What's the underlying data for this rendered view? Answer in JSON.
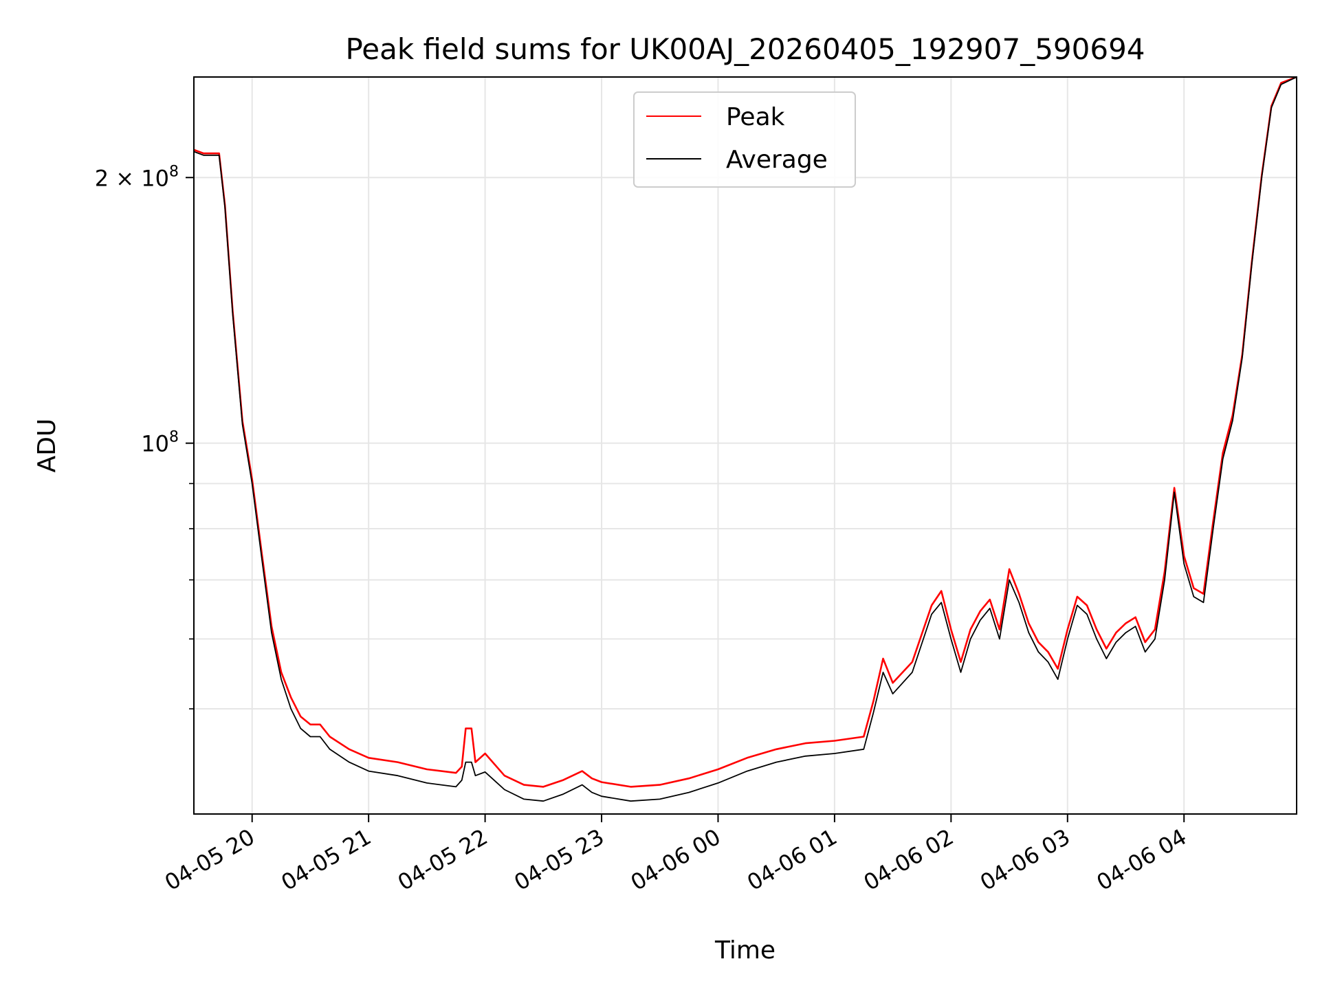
{
  "chart_data": {
    "type": "line",
    "title": "Peak field sums for UK00AJ_20260405_192907_590694",
    "xlabel": "Time",
    "ylabel": "ADU",
    "yscale": "log",
    "ylim": [
      38000000,
      260000000
    ],
    "xlim": [
      "2026-04-05 19:30",
      "2026-04-06 04:58"
    ],
    "grid": true,
    "legend": {
      "placement": "upper center",
      "entries": [
        "Peak",
        "Average"
      ]
    },
    "colors": {
      "Peak": "#ff0000",
      "Average": "#000000",
      "grid": "#e6e6e6"
    },
    "y_ticks": [
      {
        "value": 200000000,
        "base": "2 × 10",
        "exp": "8"
      },
      {
        "value": 100000000,
        "base": "10",
        "exp": "8"
      }
    ],
    "y_minor_ticks": [
      50000000,
      60000000,
      70000000,
      80000000,
      90000000
    ],
    "x_ticks": [
      {
        "time": "2026-04-05 20:00",
        "label": "04-05 20"
      },
      {
        "time": "2026-04-05 21:00",
        "label": "04-05 21"
      },
      {
        "time": "2026-04-05 22:00",
        "label": "04-05 22"
      },
      {
        "time": "2026-04-05 23:00",
        "label": "04-05 23"
      },
      {
        "time": "2026-04-06 00:00",
        "label": "04-06 00"
      },
      {
        "time": "2026-04-06 01:00",
        "label": "04-06 01"
      },
      {
        "time": "2026-04-06 02:00",
        "label": "04-06 02"
      },
      {
        "time": "2026-04-06 03:00",
        "label": "04-06 03"
      },
      {
        "time": "2026-04-06 04:00",
        "label": "04-06 04"
      }
    ],
    "series": [
      {
        "name": "Average",
        "points": [
          [
            "2026-04-05 19:30",
            214000000
          ],
          [
            "2026-04-05 19:35",
            212000000
          ],
          [
            "2026-04-05 19:43",
            212000000
          ],
          [
            "2026-04-05 19:46",
            185000000
          ],
          [
            "2026-04-05 19:50",
            140000000
          ],
          [
            "2026-04-05 19:55",
            105000000
          ],
          [
            "2026-04-05 20:00",
            90000000
          ],
          [
            "2026-04-05 20:05",
            74000000
          ],
          [
            "2026-04-05 20:10",
            61000000
          ],
          [
            "2026-04-05 20:15",
            54000000
          ],
          [
            "2026-04-05 20:20",
            50000000
          ],
          [
            "2026-04-05 20:25",
            47500000
          ],
          [
            "2026-04-05 20:30",
            46500000
          ],
          [
            "2026-04-05 20:35",
            46500000
          ],
          [
            "2026-04-05 20:40",
            45000000
          ],
          [
            "2026-04-05 20:50",
            43500000
          ],
          [
            "2026-04-05 21:00",
            42500000
          ],
          [
            "2026-04-05 21:15",
            42000000
          ],
          [
            "2026-04-05 21:30",
            41200000
          ],
          [
            "2026-04-05 21:45",
            40800000
          ],
          [
            "2026-04-05 21:48",
            41500000
          ],
          [
            "2026-04-05 21:50",
            43500000
          ],
          [
            "2026-04-05 21:53",
            43500000
          ],
          [
            "2026-04-05 21:55",
            42000000
          ],
          [
            "2026-04-05 22:00",
            42400000
          ],
          [
            "2026-04-05 22:10",
            40500000
          ],
          [
            "2026-04-05 22:20",
            39500000
          ],
          [
            "2026-04-05 22:30",
            39300000
          ],
          [
            "2026-04-05 22:40",
            40000000
          ],
          [
            "2026-04-05 22:50",
            41000000
          ],
          [
            "2026-04-05 22:55",
            40200000
          ],
          [
            "2026-04-05 23:00",
            39800000
          ],
          [
            "2026-04-05 23:15",
            39300000
          ],
          [
            "2026-04-05 23:30",
            39500000
          ],
          [
            "2026-04-05 23:45",
            40200000
          ],
          [
            "2026-04-06 00:00",
            41200000
          ],
          [
            "2026-04-06 00:15",
            42500000
          ],
          [
            "2026-04-06 00:30",
            43500000
          ],
          [
            "2026-04-06 00:45",
            44200000
          ],
          [
            "2026-04-06 01:00",
            44500000
          ],
          [
            "2026-04-06 01:15",
            45000000
          ],
          [
            "2026-04-06 01:20",
            49500000
          ],
          [
            "2026-04-06 01:25",
            55000000
          ],
          [
            "2026-04-06 01:30",
            52000000
          ],
          [
            "2026-04-06 01:40",
            55000000
          ],
          [
            "2026-04-06 01:50",
            64000000
          ],
          [
            "2026-04-06 01:55",
            66000000
          ],
          [
            "2026-04-06 02:00",
            60000000
          ],
          [
            "2026-04-06 02:05",
            55000000
          ],
          [
            "2026-04-06 02:10",
            60000000
          ],
          [
            "2026-04-06 02:15",
            63000000
          ],
          [
            "2026-04-06 02:20",
            65000000
          ],
          [
            "2026-04-06 02:25",
            60000000
          ],
          [
            "2026-04-06 02:30",
            70000000
          ],
          [
            "2026-04-06 02:35",
            66000000
          ],
          [
            "2026-04-06 02:40",
            61000000
          ],
          [
            "2026-04-06 02:45",
            58000000
          ],
          [
            "2026-04-06 02:50",
            56500000
          ],
          [
            "2026-04-06 02:55",
            54000000
          ],
          [
            "2026-04-06 03:00",
            60000000
          ],
          [
            "2026-04-06 03:05",
            65500000
          ],
          [
            "2026-04-06 03:10",
            64000000
          ],
          [
            "2026-04-06 03:15",
            60000000
          ],
          [
            "2026-04-06 03:20",
            57000000
          ],
          [
            "2026-04-06 03:25",
            59500000
          ],
          [
            "2026-04-06 03:30",
            61000000
          ],
          [
            "2026-04-06 03:35",
            62000000
          ],
          [
            "2026-04-06 03:40",
            58000000
          ],
          [
            "2026-04-06 03:45",
            60000000
          ],
          [
            "2026-04-06 03:50",
            70000000
          ],
          [
            "2026-04-06 03:55",
            88000000
          ],
          [
            "2026-04-06 04:00",
            73000000
          ],
          [
            "2026-04-06 04:05",
            67000000
          ],
          [
            "2026-04-06 04:10",
            66000000
          ],
          [
            "2026-04-06 04:15",
            80000000
          ],
          [
            "2026-04-06 04:20",
            96000000
          ],
          [
            "2026-04-06 04:25",
            106000000
          ],
          [
            "2026-04-06 04:30",
            125000000
          ],
          [
            "2026-04-06 04:35",
            160000000
          ],
          [
            "2026-04-06 04:40",
            200000000
          ],
          [
            "2026-04-06 04:45",
            240000000
          ],
          [
            "2026-04-06 04:50",
            255000000
          ],
          [
            "2026-04-06 04:58",
            260000000
          ]
        ]
      },
      {
        "name": "Peak",
        "points": [
          [
            "2026-04-05 19:30",
            215000000
          ],
          [
            "2026-04-05 19:35",
            213000000
          ],
          [
            "2026-04-05 19:43",
            213000000
          ],
          [
            "2026-04-05 19:46",
            186000000
          ],
          [
            "2026-04-05 19:50",
            141000000
          ],
          [
            "2026-04-05 19:55",
            106000000
          ],
          [
            "2026-04-05 20:00",
            91000000
          ],
          [
            "2026-04-05 20:05",
            75000000
          ],
          [
            "2026-04-05 20:10",
            62000000
          ],
          [
            "2026-04-05 20:15",
            55000000
          ],
          [
            "2026-04-05 20:20",
            51500000
          ],
          [
            "2026-04-05 20:25",
            49000000
          ],
          [
            "2026-04-05 20:30",
            48000000
          ],
          [
            "2026-04-05 20:35",
            48000000
          ],
          [
            "2026-04-05 20:40",
            46500000
          ],
          [
            "2026-04-05 20:50",
            45000000
          ],
          [
            "2026-04-05 21:00",
            44000000
          ],
          [
            "2026-04-05 21:15",
            43500000
          ],
          [
            "2026-04-05 21:30",
            42700000
          ],
          [
            "2026-04-05 21:45",
            42300000
          ],
          [
            "2026-04-05 21:48",
            43000000
          ],
          [
            "2026-04-05 21:50",
            47500000
          ],
          [
            "2026-04-05 21:53",
            47500000
          ],
          [
            "2026-04-05 21:55",
            43500000
          ],
          [
            "2026-04-05 22:00",
            44500000
          ],
          [
            "2026-04-05 22:10",
            42000000
          ],
          [
            "2026-04-05 22:20",
            41000000
          ],
          [
            "2026-04-05 22:30",
            40800000
          ],
          [
            "2026-04-05 22:40",
            41500000
          ],
          [
            "2026-04-05 22:50",
            42500000
          ],
          [
            "2026-04-05 22:55",
            41700000
          ],
          [
            "2026-04-05 23:00",
            41300000
          ],
          [
            "2026-04-05 23:15",
            40800000
          ],
          [
            "2026-04-05 23:30",
            41000000
          ],
          [
            "2026-04-05 23:45",
            41700000
          ],
          [
            "2026-04-06 00:00",
            42700000
          ],
          [
            "2026-04-06 00:15",
            44000000
          ],
          [
            "2026-04-06 00:30",
            45000000
          ],
          [
            "2026-04-06 00:45",
            45700000
          ],
          [
            "2026-04-06 01:00",
            46000000
          ],
          [
            "2026-04-06 01:15",
            46500000
          ],
          [
            "2026-04-06 01:20",
            51000000
          ],
          [
            "2026-04-06 01:25",
            57000000
          ],
          [
            "2026-04-06 01:30",
            53500000
          ],
          [
            "2026-04-06 01:40",
            56500000
          ],
          [
            "2026-04-06 01:50",
            65500000
          ],
          [
            "2026-04-06 01:55",
            68000000
          ],
          [
            "2026-04-06 02:00",
            61500000
          ],
          [
            "2026-04-06 02:05",
            56500000
          ],
          [
            "2026-04-06 02:10",
            61500000
          ],
          [
            "2026-04-06 02:15",
            64500000
          ],
          [
            "2026-04-06 02:20",
            66500000
          ],
          [
            "2026-04-06 02:25",
            61500000
          ],
          [
            "2026-04-06 02:30",
            72000000
          ],
          [
            "2026-04-06 02:35",
            67500000
          ],
          [
            "2026-04-06 02:40",
            62500000
          ],
          [
            "2026-04-06 02:45",
            59500000
          ],
          [
            "2026-04-06 02:50",
            58000000
          ],
          [
            "2026-04-06 02:55",
            55500000
          ],
          [
            "2026-04-06 03:00",
            61500000
          ],
          [
            "2026-04-06 03:05",
            67000000
          ],
          [
            "2026-04-06 03:10",
            65500000
          ],
          [
            "2026-04-06 03:15",
            61500000
          ],
          [
            "2026-04-06 03:20",
            58500000
          ],
          [
            "2026-04-06 03:25",
            61000000
          ],
          [
            "2026-04-06 03:30",
            62500000
          ],
          [
            "2026-04-06 03:35",
            63500000
          ],
          [
            "2026-04-06 03:40",
            59500000
          ],
          [
            "2026-04-06 03:45",
            61500000
          ],
          [
            "2026-04-06 03:50",
            71500000
          ],
          [
            "2026-04-06 03:55",
            89000000
          ],
          [
            "2026-04-06 04:00",
            74500000
          ],
          [
            "2026-04-06 04:05",
            68500000
          ],
          [
            "2026-04-06 04:10",
            67500000
          ],
          [
            "2026-04-06 04:15",
            81500000
          ],
          [
            "2026-04-06 04:20",
            97500000
          ],
          [
            "2026-04-06 04:25",
            107500000
          ],
          [
            "2026-04-06 04:30",
            126000000
          ],
          [
            "2026-04-06 04:35",
            161000000
          ],
          [
            "2026-04-06 04:40",
            201000000
          ],
          [
            "2026-04-06 04:45",
            241000000
          ],
          [
            "2026-04-06 04:50",
            256000000
          ],
          [
            "2026-04-06 04:58",
            260000000
          ]
        ]
      }
    ]
  }
}
